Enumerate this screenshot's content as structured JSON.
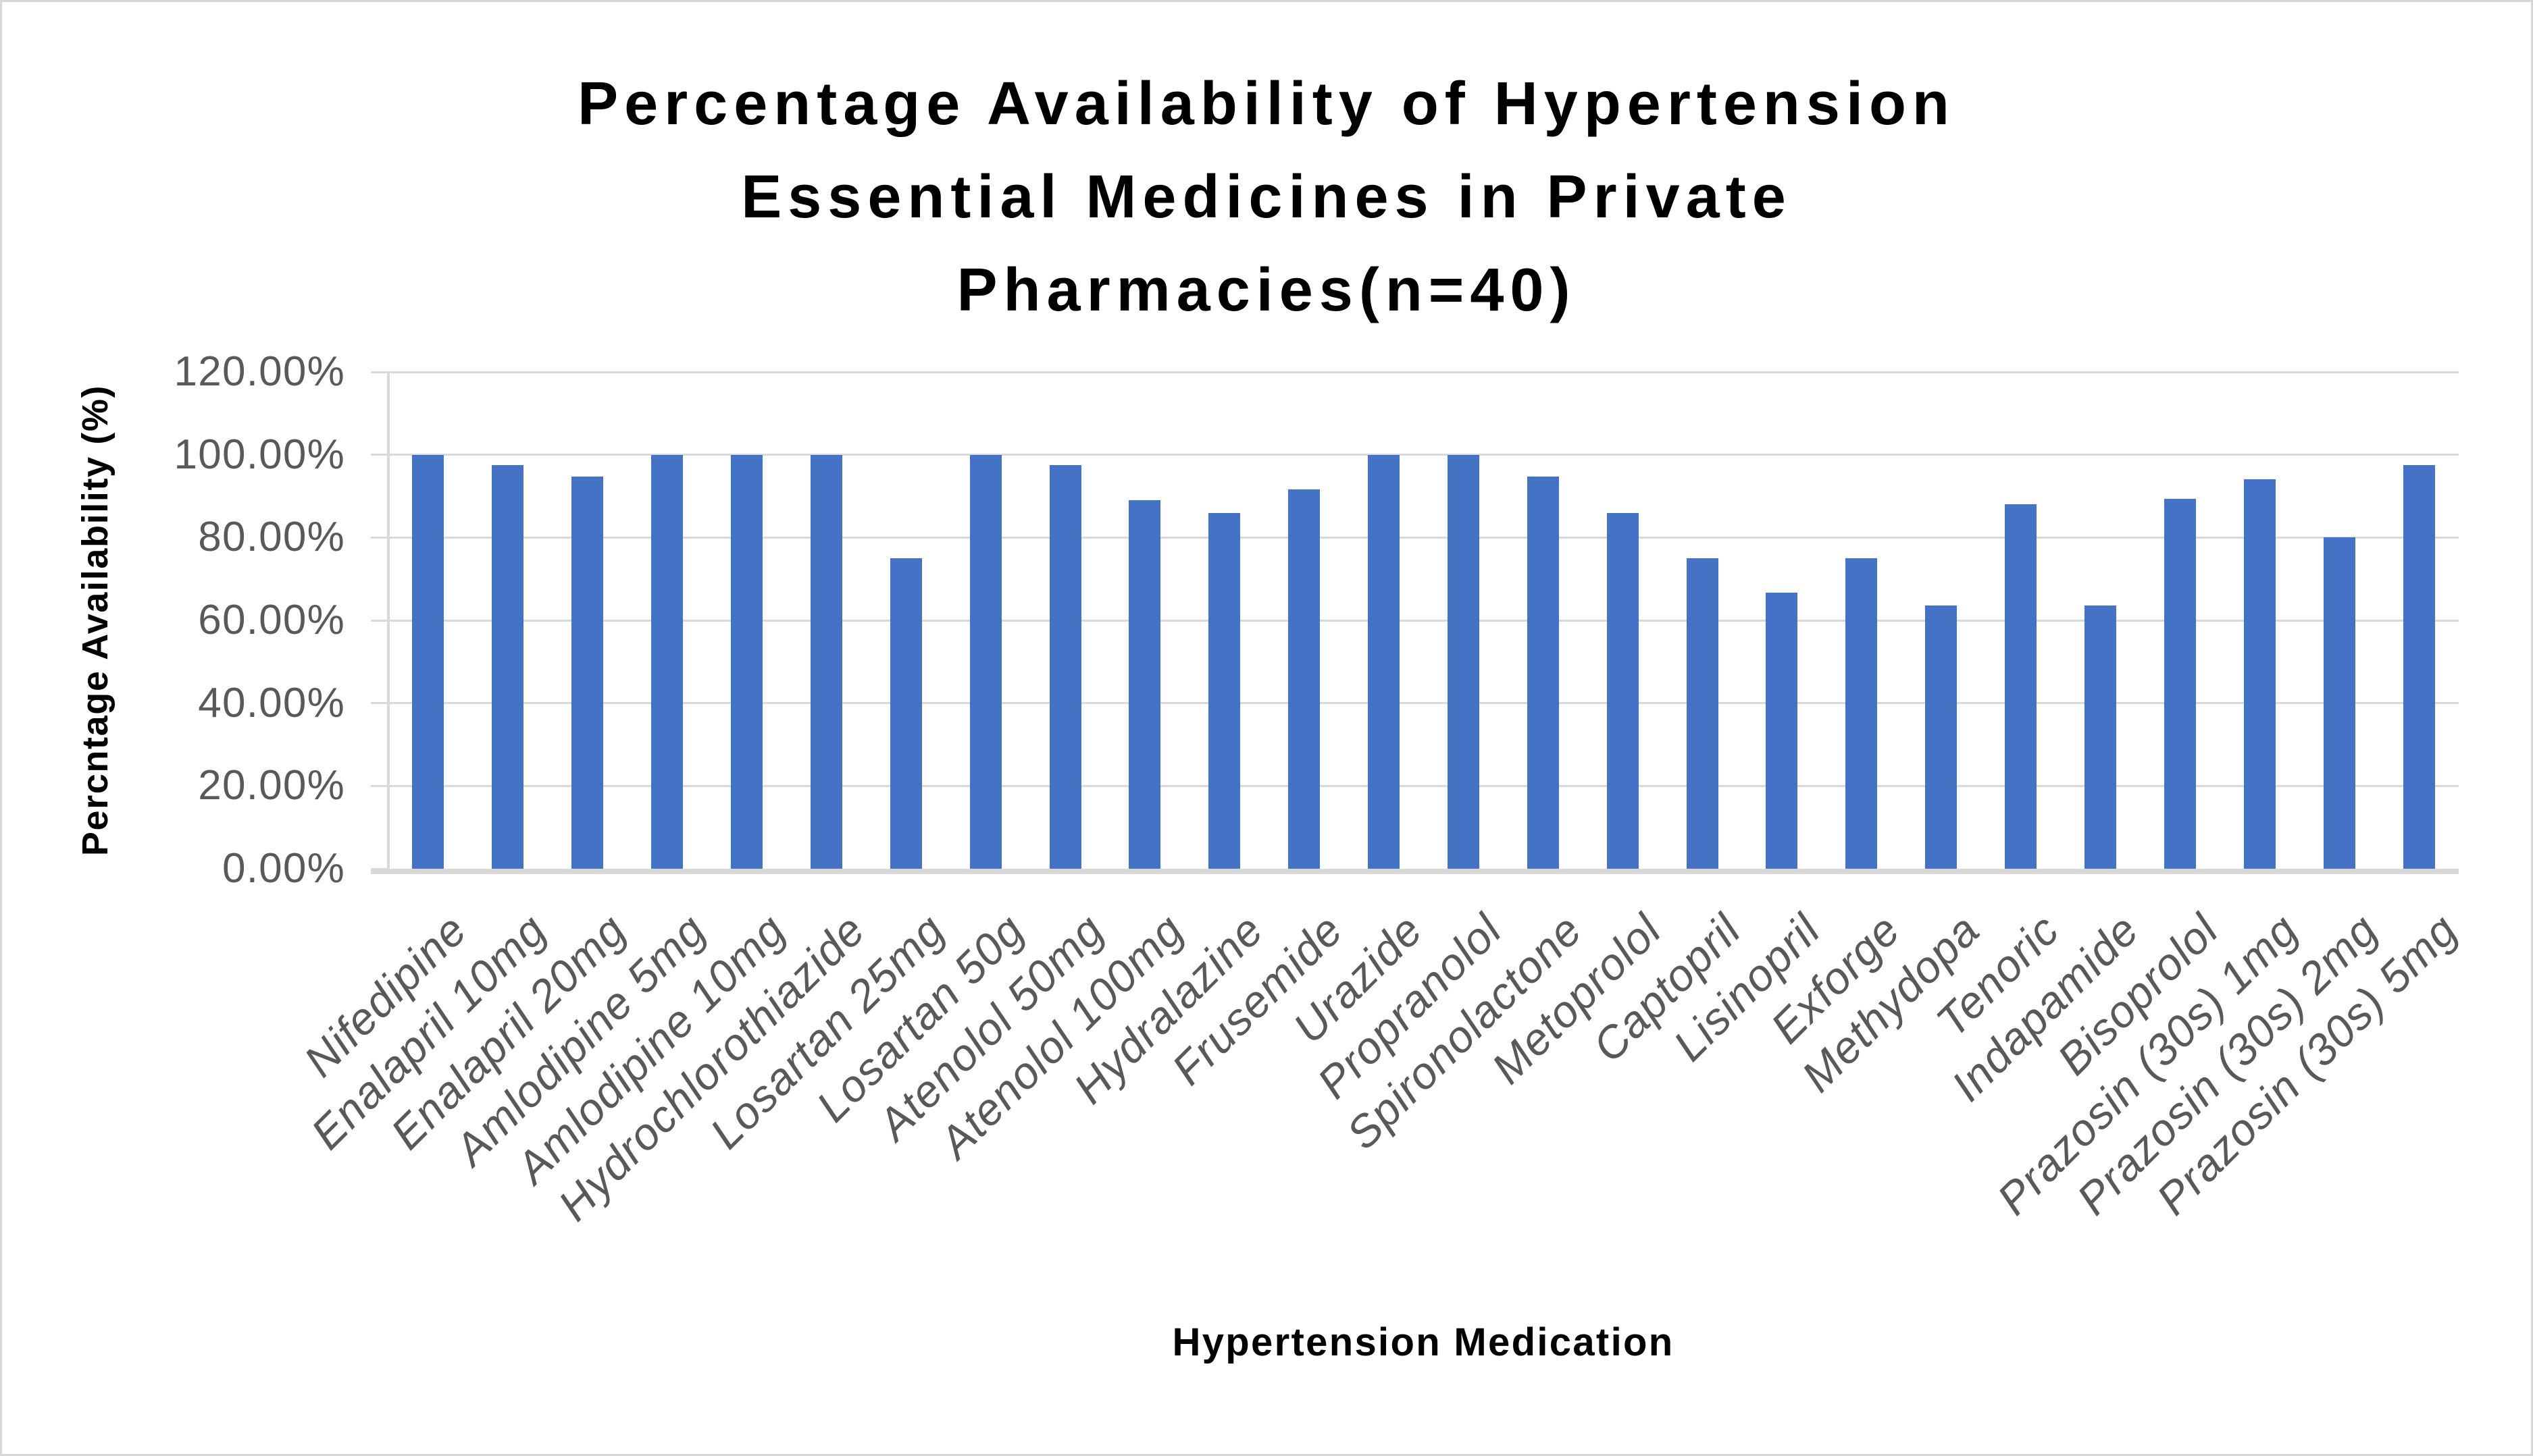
{
  "title": {
    "lines": [
      "Percentage Availability of Hypertension",
      "Essential Medicines in Private",
      "Pharmacies(n=40)"
    ]
  },
  "axes": {
    "x_title": "Hypertension Medication",
    "y_title": "Percntage Availability (%)"
  },
  "colors": {
    "bar": "#4472C4",
    "grid": "#D9D9D9",
    "axis_line": "#D9D9D9",
    "tick_text": "#595959",
    "title_text": "#000000",
    "border": "#D6D6D6",
    "background": "#FFFFFF"
  },
  "chart_data": {
    "type": "bar",
    "title": "Percentage Availability of Hypertension Essential Medicines in Private Pharmacies(n=40)",
    "xlabel": "Hypertension Medication",
    "ylabel": "Percntage Availability (%)",
    "ylim": [
      0,
      120
    ],
    "ytick_step": 20,
    "ytick_labels": [
      "0.00%",
      "20.00%",
      "40.00%",
      "60.00%",
      "80.00%",
      "100.00%",
      "120.00%"
    ],
    "grid": true,
    "legend": false,
    "categories": [
      "Nifedipine",
      "Enalapril 10mg",
      "Enalapril 20mg",
      "Amlodipine 5mg",
      "Amlodipine 10mg",
      "Hydrochlorothiazide",
      "Losartan 25mg",
      "Losartan 50g",
      "Atenolol 50mg",
      "Atenolol 100mg",
      "Hydralazine",
      "Frusemide",
      "Urazide",
      "Propranolol",
      "Spironolactone",
      "Metoprolol",
      "Captopril",
      "Lisinopril",
      "Exforge",
      "Methydopa",
      "Tenoric",
      "Indapamide",
      "Bisoprolol",
      "Prazosin (30s) 1mg",
      "Prazosin (30s) 2mg",
      "Prazosin (30s) 5mg"
    ],
    "values": [
      100,
      97.5,
      94.7,
      100,
      100,
      100,
      75,
      100,
      97.5,
      89,
      86,
      91.7,
      100,
      100,
      94.7,
      86,
      75,
      66.7,
      75,
      63.6,
      88,
      63.6,
      89.3,
      94,
      80,
      97.5
    ]
  }
}
